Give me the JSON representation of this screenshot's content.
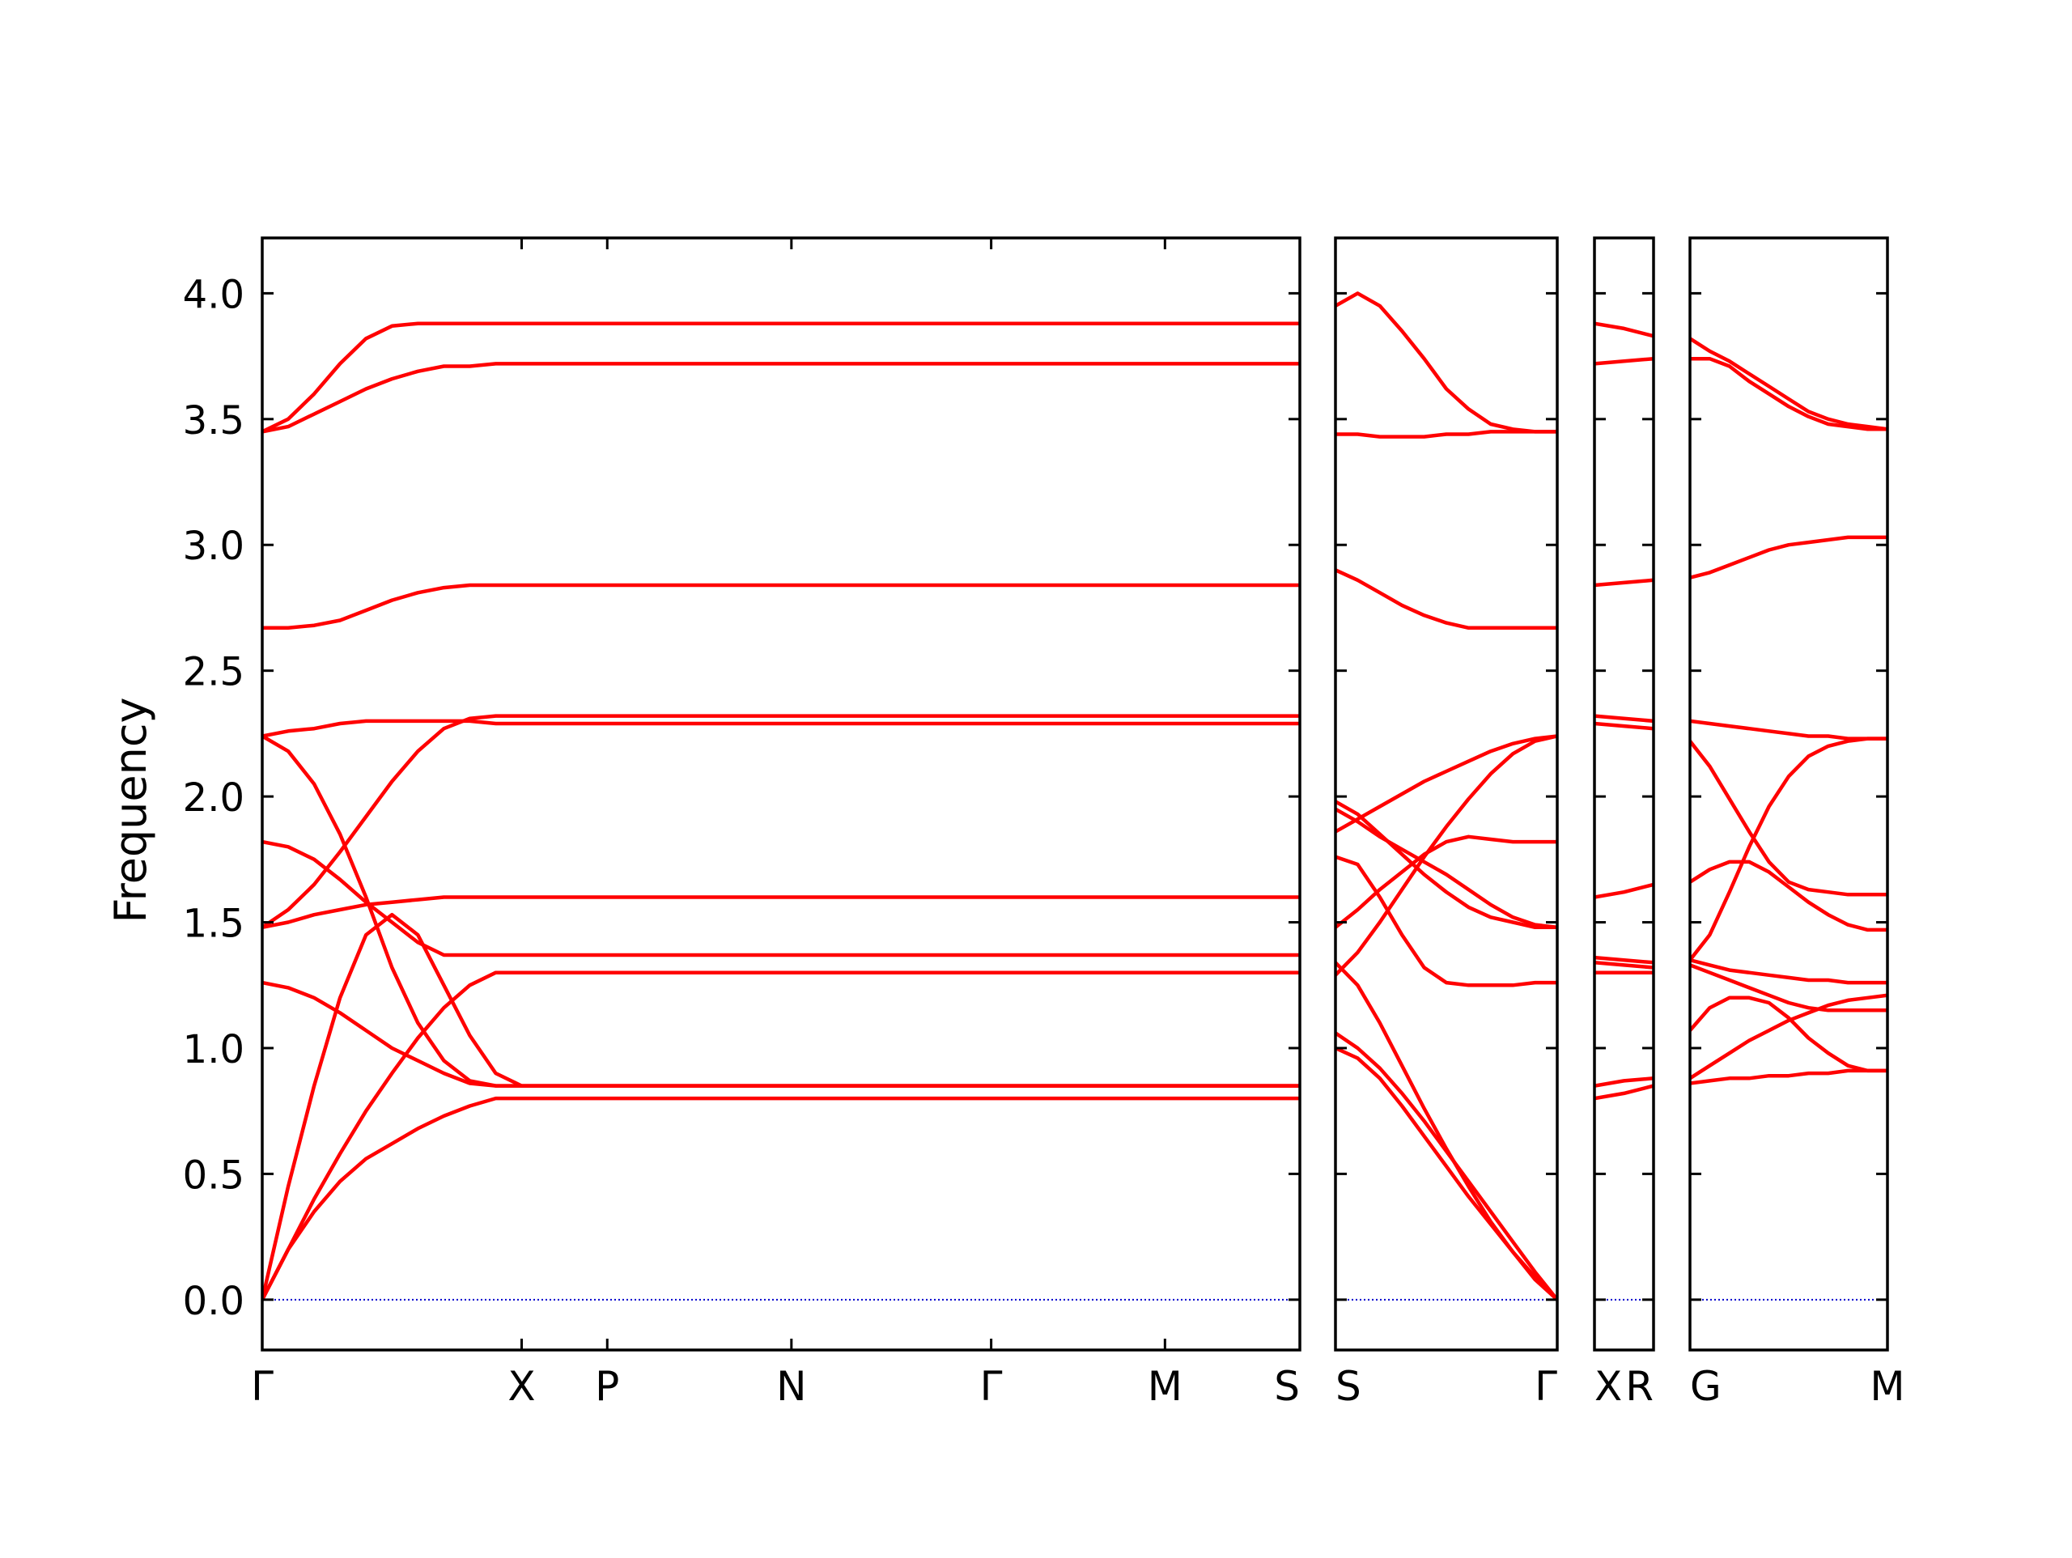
{
  "chart_data": {
    "type": "line",
    "title": "",
    "ylabel": "Frequency",
    "ylim": [
      -0.2,
      4.22
    ],
    "yticks": [
      {
        "value": 0.0,
        "label": "0.0"
      },
      {
        "value": 0.5,
        "label": "0.5"
      },
      {
        "value": 1.0,
        "label": "1.0"
      },
      {
        "value": 1.5,
        "label": "1.5"
      },
      {
        "value": 2.0,
        "label": "2.0"
      },
      {
        "value": 2.5,
        "label": "2.5"
      },
      {
        "value": 3.0,
        "label": "3.0"
      },
      {
        "value": 3.5,
        "label": "3.5"
      },
      {
        "value": 4.0,
        "label": "4.0"
      }
    ],
    "band_color": "#ff0000",
    "zero_line_color": "#0000cc",
    "segments": [
      {
        "x": [
          0,
          0.1,
          0.2,
          0.3,
          0.4,
          0.5,
          0.6,
          0.7,
          0.8,
          0.9,
          1.0,
          1.1,
          1.2,
          1.3,
          1.4,
          1.5,
          1.6,
          1.7,
          1.8,
          1.9,
          2.0,
          2.1,
          2.2,
          2.3,
          2.4,
          2.5,
          2.6,
          2.7,
          2.8,
          2.9,
          3.0,
          3.1,
          3.2,
          3.3,
          3.4,
          3.5,
          3.6,
          3.7,
          3.8,
          3.9,
          4.0
        ],
        "ticks": [
          {
            "pos": 0,
            "label": "Γ"
          },
          {
            "pos": 1.0,
            "label": "X"
          },
          {
            "pos": 1.33,
            "label": "P"
          },
          {
            "pos": 2.04,
            "label": "N"
          },
          {
            "pos": 2.81,
            "label": "Γ"
          },
          {
            "pos": 3.48,
            "label": "M"
          },
          {
            "pos": 4.0,
            "label": "S"
          }
        ],
        "bands": [
          [
            0.0,
            0.45,
            0.85,
            1.2,
            1.45,
            1.53,
            1.45,
            1.25,
            1.05,
            0.9,
            0.85,
            0.85,
            0.85,
            0.85,
            0.85,
            0.85,
            0.85,
            0.85,
            0.85,
            0.85,
            0.85,
            0.85,
            0.85,
            0.85,
            0.85,
            0.85,
            0.85,
            0.85,
            0.85,
            0.85,
            0.85,
            0.85,
            0.85,
            0.85,
            0.85,
            0.85,
            0.85,
            0.85,
            0.85,
            0.85,
            0.85
          ],
          [
            0.0,
            0.2,
            0.35,
            0.47,
            0.56,
            0.62,
            0.68,
            0.73,
            0.77,
            0.8,
            0.8,
            0.8,
            0.8,
            0.8,
            0.8,
            0.8,
            0.8,
            0.8,
            0.8,
            0.8,
            0.8,
            0.8,
            0.8,
            0.8,
            0.8,
            0.8,
            0.8,
            0.8,
            0.8,
            0.8,
            0.8,
            0.8,
            0.8,
            0.8,
            0.8,
            0.8,
            0.8,
            0.8,
            0.8,
            0.8,
            0.8
          ],
          [
            0.0,
            0.2,
            0.4,
            0.58,
            0.75,
            0.9,
            1.04,
            1.16,
            1.25,
            1.3,
            1.3,
            1.3,
            1.3,
            1.3,
            1.3,
            1.3,
            1.3,
            1.3,
            1.3,
            1.3,
            1.3,
            1.3,
            1.3,
            1.3,
            1.3,
            1.3,
            1.3,
            1.3,
            1.3,
            1.3,
            1.3,
            1.3,
            1.3,
            1.3,
            1.3,
            1.3,
            1.3,
            1.3,
            1.3,
            1.3,
            1.3
          ],
          [
            1.26,
            1.24,
            1.2,
            1.14,
            1.07,
            1.0,
            0.95,
            0.9,
            0.86,
            0.85,
            0.85,
            0.85,
            0.85,
            0.85,
            0.85,
            0.85,
            0.85,
            0.85,
            0.85,
            0.85,
            0.85,
            0.85,
            0.85,
            0.85,
            0.85,
            0.85,
            0.85,
            0.85,
            0.85,
            0.85,
            0.85,
            0.85,
            0.85,
            0.85,
            0.85,
            0.85,
            0.85,
            0.85,
            0.85,
            0.85,
            0.85
          ],
          [
            1.48,
            1.5,
            1.53,
            1.55,
            1.57,
            1.58,
            1.59,
            1.6,
            1.6,
            1.6,
            1.6,
            1.6,
            1.6,
            1.6,
            1.6,
            1.6,
            1.6,
            1.6,
            1.6,
            1.6,
            1.6,
            1.6,
            1.6,
            1.6,
            1.6,
            1.6,
            1.6,
            1.6,
            1.6,
            1.6,
            1.6,
            1.6,
            1.6,
            1.6,
            1.6,
            1.6,
            1.6,
            1.6,
            1.6,
            1.6,
            1.6
          ],
          [
            1.82,
            1.8,
            1.75,
            1.67,
            1.58,
            1.5,
            1.42,
            1.37,
            1.37,
            1.37,
            1.37,
            1.37,
            1.37,
            1.37,
            1.37,
            1.37,
            1.37,
            1.37,
            1.37,
            1.37,
            1.37,
            1.37,
            1.37,
            1.37,
            1.37,
            1.37,
            1.37,
            1.37,
            1.37,
            1.37,
            1.37,
            1.37,
            1.37,
            1.37,
            1.37,
            1.37,
            1.37,
            1.37,
            1.37,
            1.37,
            1.37
          ],
          [
            1.48,
            1.55,
            1.65,
            1.78,
            1.92,
            2.06,
            2.18,
            2.27,
            2.31,
            2.32,
            2.32,
            2.32,
            2.32,
            2.32,
            2.32,
            2.32,
            2.32,
            2.32,
            2.32,
            2.32,
            2.32,
            2.32,
            2.32,
            2.32,
            2.32,
            2.32,
            2.32,
            2.32,
            2.32,
            2.32,
            2.32,
            2.32,
            2.32,
            2.32,
            2.32,
            2.32,
            2.32,
            2.32,
            2.32,
            2.32,
            2.32
          ],
          [
            2.24,
            2.18,
            2.05,
            1.85,
            1.6,
            1.32,
            1.1,
            0.95,
            0.87,
            0.85,
            0.85,
            0.85,
            0.85,
            0.85,
            0.85,
            0.85,
            0.85,
            0.85,
            0.85,
            0.85,
            0.85,
            0.85,
            0.85,
            0.85,
            0.85,
            0.85,
            0.85,
            0.85,
            0.85,
            0.85,
            0.85,
            0.85,
            0.85,
            0.85,
            0.85,
            0.85,
            0.85,
            0.85,
            0.85,
            0.85,
            0.85
          ],
          [
            2.24,
            2.26,
            2.27,
            2.29,
            2.3,
            2.3,
            2.3,
            2.3,
            2.3,
            2.29,
            2.29,
            2.29,
            2.29,
            2.29,
            2.29,
            2.29,
            2.29,
            2.29,
            2.29,
            2.29,
            2.29,
            2.29,
            2.29,
            2.29,
            2.29,
            2.29,
            2.29,
            2.29,
            2.29,
            2.29,
            2.29,
            2.29,
            2.29,
            2.29,
            2.29,
            2.29,
            2.29,
            2.29,
            2.29,
            2.29,
            2.29
          ],
          [
            2.67,
            2.67,
            2.68,
            2.7,
            2.74,
            2.78,
            2.81,
            2.83,
            2.84,
            2.84,
            2.84,
            2.84,
            2.84,
            2.84,
            2.84,
            2.84,
            2.84,
            2.84,
            2.84,
            2.84,
            2.84,
            2.84,
            2.84,
            2.84,
            2.84,
            2.84,
            2.84,
            2.84,
            2.84,
            2.84,
            2.84,
            2.84,
            2.84,
            2.84,
            2.84,
            2.84,
            2.84,
            2.84,
            2.84,
            2.84,
            2.84
          ],
          [
            3.45,
            3.47,
            3.52,
            3.57,
            3.62,
            3.66,
            3.69,
            3.71,
            3.71,
            3.72,
            3.72,
            3.72,
            3.72,
            3.72,
            3.72,
            3.72,
            3.72,
            3.72,
            3.72,
            3.72,
            3.72,
            3.72,
            3.72,
            3.72,
            3.72,
            3.72,
            3.72,
            3.72,
            3.72,
            3.72,
            3.72,
            3.72,
            3.72,
            3.72,
            3.72,
            3.72,
            3.72,
            3.72,
            3.72,
            3.72,
            3.72
          ],
          [
            3.45,
            3.5,
            3.6,
            3.72,
            3.82,
            3.87,
            3.88,
            3.88,
            3.88,
            3.88,
            3.88,
            3.88,
            3.88,
            3.88,
            3.88,
            3.88,
            3.88,
            3.88,
            3.88,
            3.88,
            3.88,
            3.88,
            3.88,
            3.88,
            3.88,
            3.88,
            3.88,
            3.88,
            3.88,
            3.88,
            3.88,
            3.88,
            3.88,
            3.88,
            3.88,
            3.88,
            3.88,
            3.88,
            3.88,
            3.88,
            3.88
          ]
        ]
      },
      {
        "x": [
          0,
          0.1,
          0.2,
          0.3,
          0.4,
          0.5,
          0.6,
          0.7,
          0.8,
          0.9,
          1.0
        ],
        "ticks": [
          {
            "pos": 0,
            "label": "S"
          },
          {
            "pos": 1.0,
            "label": "Γ"
          }
        ],
        "bands": [
          [
            1.0,
            0.96,
            0.88,
            0.77,
            0.65,
            0.53,
            0.41,
            0.3,
            0.19,
            0.09,
            0.0
          ],
          [
            1.06,
            1.0,
            0.92,
            0.82,
            0.71,
            0.59,
            0.47,
            0.35,
            0.23,
            0.11,
            0.0
          ],
          [
            1.34,
            1.25,
            1.1,
            0.93,
            0.76,
            0.6,
            0.45,
            0.31,
            0.19,
            0.08,
            0.0
          ],
          [
            1.76,
            1.73,
            1.6,
            1.45,
            1.32,
            1.26,
            1.25,
            1.25,
            1.25,
            1.26,
            1.26
          ],
          [
            1.95,
            1.9,
            1.84,
            1.79,
            1.74,
            1.69,
            1.63,
            1.57,
            1.52,
            1.49,
            1.48
          ],
          [
            1.98,
            1.93,
            1.85,
            1.77,
            1.69,
            1.62,
            1.56,
            1.52,
            1.5,
            1.48,
            1.48
          ],
          [
            1.48,
            1.55,
            1.63,
            1.7,
            1.77,
            1.82,
            1.84,
            1.83,
            1.82,
            1.82,
            1.82
          ],
          [
            1.29,
            1.38,
            1.5,
            1.63,
            1.76,
            1.88,
            1.99,
            2.09,
            2.17,
            2.22,
            2.24
          ],
          [
            1.86,
            1.91,
            1.96,
            2.01,
            2.06,
            2.1,
            2.14,
            2.18,
            2.21,
            2.23,
            2.24
          ],
          [
            2.9,
            2.86,
            2.81,
            2.76,
            2.72,
            2.69,
            2.67,
            2.67,
            2.67,
            2.67,
            2.67
          ],
          [
            3.44,
            3.44,
            3.43,
            3.43,
            3.43,
            3.44,
            3.44,
            3.45,
            3.45,
            3.45,
            3.45
          ],
          [
            3.95,
            4.0,
            3.95,
            3.85,
            3.74,
            3.62,
            3.54,
            3.48,
            3.46,
            3.45,
            3.45
          ]
        ]
      },
      {
        "x": [
          0,
          0.5,
          1.0
        ],
        "ticks": [
          {
            "pos": 0,
            "label": "X"
          },
          {
            "pos": 1.0,
            "label": "R"
          }
        ],
        "bands": [
          [
            0.8,
            0.82,
            0.85
          ],
          [
            0.85,
            0.87,
            0.88
          ],
          [
            1.3,
            1.3,
            1.3
          ],
          [
            1.34,
            1.33,
            1.32
          ],
          [
            1.36,
            1.35,
            1.34
          ],
          [
            1.6,
            1.62,
            1.65
          ],
          [
            2.29,
            2.28,
            2.27
          ],
          [
            2.32,
            2.31,
            2.3
          ],
          [
            2.84,
            2.85,
            2.86
          ],
          [
            3.72,
            3.73,
            3.74
          ],
          [
            3.88,
            3.86,
            3.83
          ]
        ]
      },
      {
        "x": [
          0,
          0.1,
          0.2,
          0.3,
          0.4,
          0.5,
          0.6,
          0.7,
          0.8,
          0.9,
          1.0
        ],
        "ticks": [
          {
            "pos": 0,
            "label": "G"
          },
          {
            "pos": 1.0,
            "label": "M"
          }
        ],
        "bands": [
          [
            0.86,
            0.87,
            0.88,
            0.88,
            0.89,
            0.89,
            0.9,
            0.9,
            0.91,
            0.91,
            0.91
          ],
          [
            0.88,
            0.93,
            0.98,
            1.03,
            1.07,
            1.11,
            1.14,
            1.17,
            1.19,
            1.2,
            1.21
          ],
          [
            1.07,
            1.16,
            1.2,
            1.2,
            1.18,
            1.12,
            1.04,
            0.98,
            0.93,
            0.91,
            0.91
          ],
          [
            1.35,
            1.33,
            1.31,
            1.3,
            1.29,
            1.28,
            1.27,
            1.27,
            1.26,
            1.26,
            1.26
          ],
          [
            1.33,
            1.3,
            1.27,
            1.24,
            1.21,
            1.18,
            1.16,
            1.15,
            1.15,
            1.15,
            1.15
          ],
          [
            1.66,
            1.71,
            1.74,
            1.74,
            1.7,
            1.64,
            1.58,
            1.53,
            1.49,
            1.47,
            1.47
          ],
          [
            1.35,
            1.45,
            1.62,
            1.8,
            1.96,
            2.08,
            2.16,
            2.2,
            2.22,
            2.23,
            2.23
          ],
          [
            2.22,
            2.12,
            1.99,
            1.86,
            1.74,
            1.66,
            1.63,
            1.62,
            1.61,
            1.61,
            1.61
          ],
          [
            2.3,
            2.29,
            2.28,
            2.27,
            2.26,
            2.25,
            2.24,
            2.24,
            2.23,
            2.23,
            2.23
          ],
          [
            2.87,
            2.89,
            2.92,
            2.95,
            2.98,
            3.0,
            3.01,
            3.02,
            3.03,
            3.03,
            3.03
          ],
          [
            3.74,
            3.74,
            3.71,
            3.65,
            3.6,
            3.55,
            3.51,
            3.48,
            3.47,
            3.46,
            3.46
          ],
          [
            3.82,
            3.77,
            3.73,
            3.68,
            3.63,
            3.58,
            3.53,
            3.5,
            3.48,
            3.47,
            3.46
          ]
        ]
      }
    ]
  }
}
